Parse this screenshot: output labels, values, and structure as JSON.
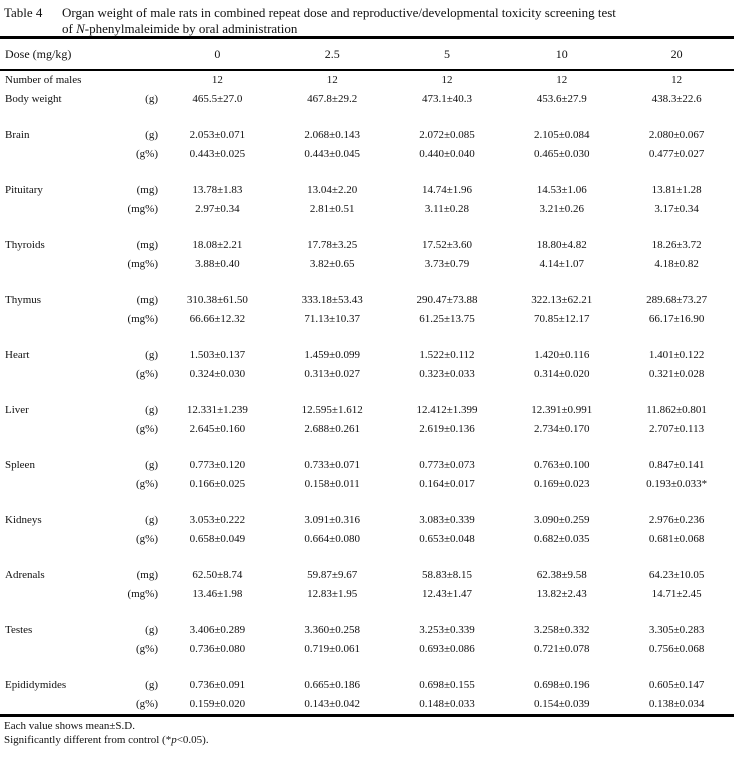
{
  "title": {
    "label": "Table 4",
    "line1": "Organ weight of male rats in combined repeat dose and reproductive/developmental toxicity screening test",
    "line2_pre": "of ",
    "line2_italic": "N",
    "line2_post": "-phenylmaleimide by oral administration"
  },
  "header": {
    "dose_label": "Dose (mg/kg)",
    "doses": [
      "0",
      "2.5",
      "5",
      "10",
      "20"
    ]
  },
  "table": {
    "rows": [
      {
        "label": "Number of males",
        "unit": "",
        "group": false,
        "values": [
          "12",
          "12",
          "12",
          "12",
          "12"
        ]
      },
      {
        "label": "Body weight",
        "unit": "(g)",
        "group": false,
        "values": [
          "465.5±27.0",
          "467.8±29.2",
          "473.1±40.3",
          "453.6±27.9",
          "438.3±22.6"
        ]
      },
      {
        "label": "Brain",
        "unit": "(g)",
        "group": true,
        "values": [
          "2.053±0.071",
          "2.068±0.143",
          "2.072±0.085",
          "2.105±0.084",
          "2.080±0.067"
        ]
      },
      {
        "label": "",
        "unit": "(g%)",
        "group": false,
        "values": [
          "0.443±0.025",
          "0.443±0.045",
          "0.440±0.040",
          "0.465±0.030",
          "0.477±0.027"
        ]
      },
      {
        "label": "Pituitary",
        "unit": "(mg)",
        "group": true,
        "values": [
          "13.78±1.83",
          "13.04±2.20",
          "14.74±1.96",
          "14.53±1.06",
          "13.81±1.28"
        ]
      },
      {
        "label": "",
        "unit": "(mg%)",
        "group": false,
        "values": [
          "2.97±0.34",
          "2.81±0.51",
          "3.11±0.28",
          "3.21±0.26",
          "3.17±0.34"
        ]
      },
      {
        "label": "Thyroids",
        "unit": "(mg)",
        "group": true,
        "values": [
          "18.08±2.21",
          "17.78±3.25",
          "17.52±3.60",
          "18.80±4.82",
          "18.26±3.72"
        ]
      },
      {
        "label": "",
        "unit": "(mg%)",
        "group": false,
        "values": [
          "3.88±0.40",
          "3.82±0.65",
          "3.73±0.79",
          "4.14±1.07",
          "4.18±0.82"
        ]
      },
      {
        "label": "Thymus",
        "unit": "(mg)",
        "group": true,
        "values": [
          "310.38±61.50",
          "333.18±53.43",
          "290.47±73.88",
          "322.13±62.21",
          "289.68±73.27"
        ]
      },
      {
        "label": "",
        "unit": "(mg%)",
        "group": false,
        "values": [
          "66.66±12.32",
          "71.13±10.37",
          "61.25±13.75",
          "70.85±12.17",
          "66.17±16.90"
        ]
      },
      {
        "label": "Heart",
        "unit": "(g)",
        "group": true,
        "values": [
          "1.503±0.137",
          "1.459±0.099",
          "1.522±0.112",
          "1.420±0.116",
          "1.401±0.122"
        ]
      },
      {
        "label": "",
        "unit": "(g%)",
        "group": false,
        "values": [
          "0.324±0.030",
          "0.313±0.027",
          "0.323±0.033",
          "0.314±0.020",
          "0.321±0.028"
        ]
      },
      {
        "label": "Liver",
        "unit": "(g)",
        "group": true,
        "values": [
          "12.331±1.239",
          "12.595±1.612",
          "12.412±1.399",
          "12.391±0.991",
          "11.862±0.801"
        ]
      },
      {
        "label": "",
        "unit": "(g%)",
        "group": false,
        "values": [
          "2.645±0.160",
          "2.688±0.261",
          "2.619±0.136",
          "2.734±0.170",
          "2.707±0.113"
        ]
      },
      {
        "label": "Spleen",
        "unit": "(g)",
        "group": true,
        "values": [
          "0.773±0.120",
          "0.733±0.071",
          "0.773±0.073",
          "0.763±0.100",
          "0.847±0.141"
        ]
      },
      {
        "label": "",
        "unit": "(g%)",
        "group": false,
        "values": [
          "0.166±0.025",
          "0.158±0.011",
          "0.164±0.017",
          "0.169±0.023",
          "0.193±0.033*"
        ]
      },
      {
        "label": "Kidneys",
        "unit": "(g)",
        "group": true,
        "values": [
          "3.053±0.222",
          "3.091±0.316",
          "3.083±0.339",
          "3.090±0.259",
          "2.976±0.236"
        ]
      },
      {
        "label": "",
        "unit": "(g%)",
        "group": false,
        "values": [
          "0.658±0.049",
          "0.664±0.080",
          "0.653±0.048",
          "0.682±0.035",
          "0.681±0.068"
        ]
      },
      {
        "label": "Adrenals",
        "unit": "(mg)",
        "group": true,
        "values": [
          "62.50±8.74",
          "59.87±9.67",
          "58.83±8.15",
          "62.38±9.58",
          "64.23±10.05"
        ]
      },
      {
        "label": "",
        "unit": "(mg%)",
        "group": false,
        "values": [
          "13.46±1.98",
          "12.83±1.95",
          "12.43±1.47",
          "13.82±2.43",
          "14.71±2.45"
        ]
      },
      {
        "label": "Testes",
        "unit": "(g)",
        "group": true,
        "values": [
          "3.406±0.289",
          "3.360±0.258",
          "3.253±0.339",
          "3.258±0.332",
          "3.305±0.283"
        ]
      },
      {
        "label": "",
        "unit": "(g%)",
        "group": false,
        "values": [
          "0.736±0.080",
          "0.719±0.061",
          "0.693±0.086",
          "0.721±0.078",
          "0.756±0.068"
        ]
      },
      {
        "label": "Epididymides",
        "unit": "(g)",
        "group": true,
        "values": [
          "0.736±0.091",
          "0.665±0.186",
          "0.698±0.155",
          "0.698±0.196",
          "0.605±0.147"
        ]
      },
      {
        "label": "",
        "unit": "(g%)",
        "group": false,
        "values": [
          "0.159±0.020",
          "0.143±0.042",
          "0.148±0.033",
          "0.154±0.039",
          "0.138±0.034"
        ]
      }
    ]
  },
  "footnotes": {
    "line1": "Each value shows mean±S.D.",
    "line2_pre": "Significantly different from control (*",
    "line2_italic": "p",
    "line2_post": "<0.05)."
  }
}
